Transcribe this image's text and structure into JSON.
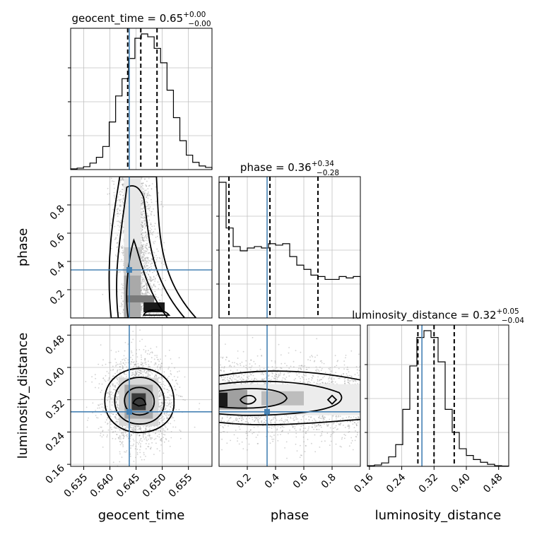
{
  "chart_data": {
    "type": "corner",
    "parameters": [
      "geocent_time",
      "phase",
      "luminosity_distance"
    ],
    "truths": {
      "geocent_time": 0.6437,
      "phase": 0.34,
      "luminosity_distance": 0.29
    },
    "colors": {
      "truth": "#4682b4",
      "hist": "#000000",
      "grid": "#c0c0c0",
      "points": "#9a9a9a"
    },
    "titles": {
      "geocent_time": {
        "name": "geocent_time",
        "value": "0.65",
        "plus": "+0.00",
        "minus": "−0.00"
      },
      "phase": {
        "name": "phase",
        "value": "0.36",
        "plus": "+0.34",
        "minus": "−0.28"
      },
      "luminosity_distance": {
        "name": "luminosity_distance",
        "value": "0.32",
        "plus": "+0.05",
        "minus": "−0.04"
      }
    },
    "axis_labels": {
      "x": [
        "geocent_time",
        "phase",
        "luminosity_distance"
      ],
      "y": [
        "phase",
        "luminosity_distance"
      ]
    },
    "ranges": {
      "geocent_time": [
        0.6325,
        0.6595
      ],
      "phase": [
        0.0,
        1.0
      ],
      "luminosity_distance": [
        0.155,
        0.505
      ]
    },
    "ticks": {
      "geocent_time": [
        "0.635",
        "0.640",
        "0.645",
        "0.650",
        "0.655"
      ],
      "phase": [
        "0.2",
        "0.4",
        "0.6",
        "0.8"
      ],
      "luminosity_distance": [
        "0.16",
        "0.24",
        "0.32",
        "0.40",
        "0.48"
      ]
    },
    "hist_geocent_time": {
      "bins": [
        0.6325,
        0.6595
      ],
      "counts": [
        0.5,
        1,
        2,
        4.5,
        8.5,
        16,
        33,
        51,
        63,
        77,
        91,
        94,
        92,
        84,
        74,
        55,
        36,
        20,
        10,
        5,
        2.5,
        1.5
      ],
      "quantiles": [
        0.6434,
        0.6459,
        0.649
      ]
    },
    "hist_phase": {
      "bins": [
        0.0,
        1.0
      ],
      "counts": [
        95,
        63,
        50,
        47,
        49,
        50,
        49,
        52,
        51,
        52,
        43,
        37,
        34,
        30,
        29,
        27,
        27,
        29,
        28,
        29
      ],
      "quantiles": [
        0.07,
        0.36,
        0.7
      ]
    },
    "hist_luminosity_distance": {
      "bins": [
        0.155,
        0.505
      ],
      "counts": [
        0.5,
        1,
        2.5,
        7,
        16,
        42,
        74,
        95,
        100,
        95,
        77,
        42,
        25,
        13,
        8,
        5,
        3,
        1.5,
        0.5,
        0.2
      ],
      "quantiles": [
        0.28,
        0.32,
        0.37
      ]
    },
    "joint_phase_vs_geocent_time": {
      "x_peak": 0.6475,
      "y_peak": 0.03
    },
    "joint_luminosity_distance_vs_geocent_time": {
      "x_peak": 0.6465,
      "y_peak": 0.31
    },
    "joint_luminosity_distance_vs_phase": {
      "x_peak": 0.02,
      "y_peak": 0.31
    }
  }
}
